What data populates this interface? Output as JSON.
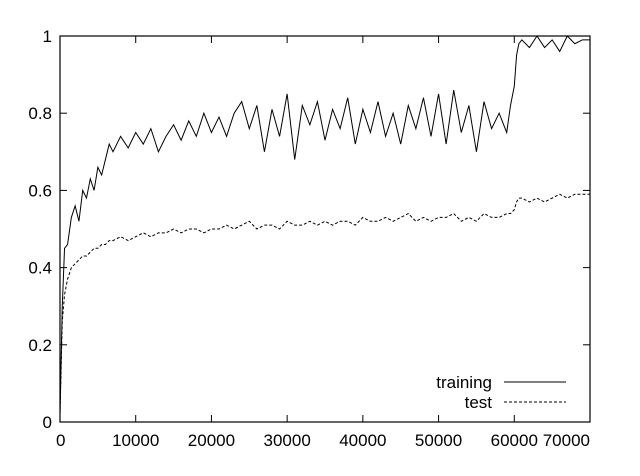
{
  "chart_data": {
    "type": "line",
    "title": "",
    "xlabel": "",
    "ylabel": "",
    "xlim": [
      0,
      70000
    ],
    "ylim": [
      0,
      1
    ],
    "x_ticks": [
      "0",
      "10000",
      "20000",
      "30000",
      "40000",
      "50000",
      "60000",
      "70000"
    ],
    "y_ticks": [
      "0",
      "0.2",
      "0.4",
      "0.6",
      "0.8",
      "1"
    ],
    "grid": false,
    "legend_position": "bottom-right",
    "series": [
      {
        "name": "training",
        "style": "solid",
        "color": "#000000",
        "x": [
          0,
          300,
          600,
          1000,
          1500,
          2000,
          2500,
          3000,
          3500,
          4000,
          4500,
          5000,
          5500,
          6000,
          6500,
          7000,
          8000,
          9000,
          10000,
          11000,
          12000,
          13000,
          14000,
          15000,
          16000,
          17000,
          18000,
          19000,
          20000,
          21000,
          22000,
          23000,
          24000,
          25000,
          26000,
          27000,
          28000,
          29000,
          30000,
          31000,
          32000,
          33000,
          34000,
          35000,
          36000,
          37000,
          38000,
          39000,
          40000,
          41000,
          42000,
          43000,
          44000,
          45000,
          46000,
          47000,
          48000,
          49000,
          50000,
          51000,
          52000,
          53000,
          54000,
          55000,
          56000,
          57000,
          58000,
          59000,
          59500,
          60000,
          60300,
          60600,
          61000,
          62000,
          63000,
          64000,
          65000,
          66000,
          67000,
          68000,
          69000,
          70000
        ],
        "y": [
          0.02,
          0.3,
          0.45,
          0.46,
          0.53,
          0.56,
          0.52,
          0.6,
          0.58,
          0.63,
          0.6,
          0.66,
          0.64,
          0.68,
          0.72,
          0.7,
          0.74,
          0.71,
          0.75,
          0.72,
          0.76,
          0.7,
          0.74,
          0.77,
          0.73,
          0.78,
          0.74,
          0.8,
          0.75,
          0.79,
          0.74,
          0.8,
          0.83,
          0.76,
          0.82,
          0.7,
          0.81,
          0.74,
          0.85,
          0.68,
          0.82,
          0.77,
          0.83,
          0.73,
          0.81,
          0.76,
          0.84,
          0.72,
          0.81,
          0.75,
          0.83,
          0.74,
          0.8,
          0.72,
          0.82,
          0.76,
          0.84,
          0.74,
          0.85,
          0.72,
          0.86,
          0.75,
          0.82,
          0.7,
          0.83,
          0.76,
          0.8,
          0.75,
          0.82,
          0.87,
          0.95,
          0.98,
          0.99,
          0.97,
          1.0,
          0.97,
          0.99,
          0.96,
          1.0,
          0.98,
          0.99,
          0.99
        ]
      },
      {
        "name": "test",
        "style": "dashed",
        "color": "#000000",
        "x": [
          0,
          300,
          600,
          1000,
          1500,
          2000,
          2500,
          3000,
          3500,
          4000,
          4500,
          5000,
          5500,
          6000,
          6500,
          7000,
          8000,
          9000,
          10000,
          11000,
          12000,
          13000,
          14000,
          15000,
          16000,
          17000,
          18000,
          19000,
          20000,
          21000,
          22000,
          23000,
          24000,
          25000,
          26000,
          27000,
          28000,
          29000,
          30000,
          31000,
          32000,
          33000,
          34000,
          35000,
          36000,
          37000,
          38000,
          39000,
          40000,
          41000,
          42000,
          43000,
          44000,
          45000,
          46000,
          47000,
          48000,
          49000,
          50000,
          51000,
          52000,
          53000,
          54000,
          55000,
          56000,
          57000,
          58000,
          59000,
          59500,
          60000,
          60300,
          60600,
          61000,
          62000,
          63000,
          64000,
          65000,
          66000,
          67000,
          68000,
          69000,
          70000
        ],
        "y": [
          0.02,
          0.26,
          0.33,
          0.37,
          0.4,
          0.41,
          0.42,
          0.43,
          0.43,
          0.44,
          0.45,
          0.45,
          0.46,
          0.46,
          0.47,
          0.47,
          0.48,
          0.47,
          0.48,
          0.49,
          0.48,
          0.49,
          0.49,
          0.5,
          0.49,
          0.5,
          0.5,
          0.49,
          0.5,
          0.5,
          0.51,
          0.5,
          0.51,
          0.52,
          0.5,
          0.51,
          0.51,
          0.5,
          0.52,
          0.51,
          0.51,
          0.52,
          0.51,
          0.52,
          0.51,
          0.52,
          0.52,
          0.51,
          0.53,
          0.52,
          0.52,
          0.53,
          0.52,
          0.53,
          0.54,
          0.52,
          0.53,
          0.52,
          0.53,
          0.53,
          0.54,
          0.52,
          0.53,
          0.52,
          0.54,
          0.53,
          0.53,
          0.54,
          0.54,
          0.55,
          0.57,
          0.58,
          0.58,
          0.57,
          0.58,
          0.57,
          0.58,
          0.59,
          0.58,
          0.59,
          0.59,
          0.59
        ]
      }
    ]
  }
}
